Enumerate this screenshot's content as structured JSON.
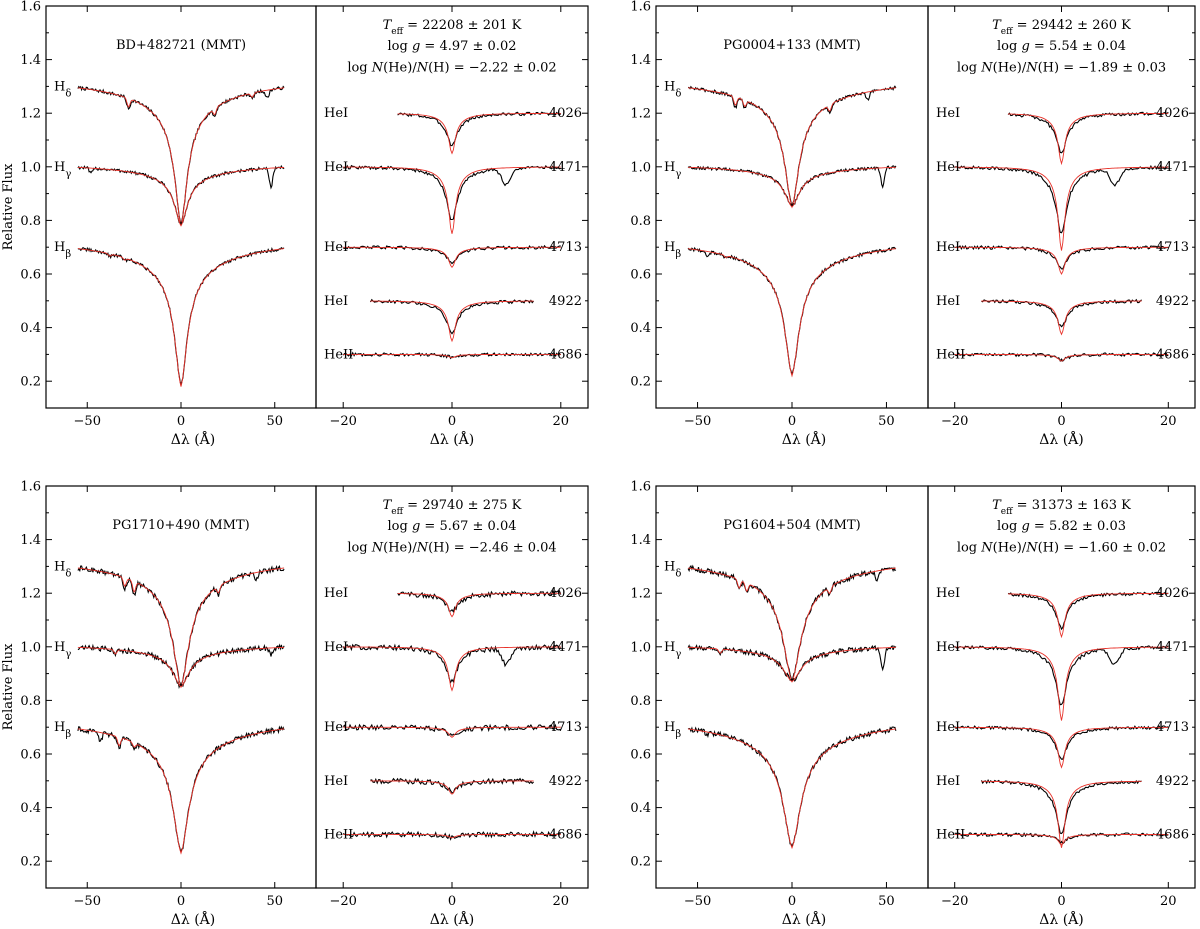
{
  "colors": {
    "observed": "#000000",
    "model": "#e8322a"
  },
  "chart_data": [
    {
      "type": "line",
      "star": "BD+482721 (MMT)",
      "ylabel": "Relative Flux",
      "xlabel": "Δλ (Å)",
      "params": [
        "T_eff = 22208 ± 201 K",
        "log g = 4.97 ± 0.02",
        "log N(He)/N(H) = −2.22 ± 0.02"
      ],
      "left_panel": {
        "xlim": [
          -72,
          72
        ],
        "ylim": [
          0.1,
          1.6
        ],
        "xticks": [
          -50,
          0,
          50
        ],
        "yticks": [
          0.2,
          0.4,
          0.6,
          0.8,
          1.0,
          1.2,
          1.4,
          1.6
        ],
        "ytick_labels": [
          "0.2",
          "0.4",
          "0.6",
          "0.8",
          "1.0",
          "1.2",
          "1.4",
          "1.6"
        ],
        "lines": [
          {
            "label": "H_δ",
            "offset": 1.3,
            "depth": 0.52,
            "width": 4.0,
            "extra": [
              [
                -28,
                0.04
              ],
              [
                18,
                0.03
              ],
              [
                38,
                0.02
              ],
              [
                46,
                0.03
              ]
            ]
          },
          {
            "label": "H_γ",
            "offset": 1.0,
            "depth": 0.22,
            "width": 4.0,
            "extra": [
              [
                -48,
                0.02
              ],
              [
                48,
                0.07
              ]
            ]
          },
          {
            "label": "H_β",
            "offset": 0.7,
            "depth": 0.52,
            "width": 4.0,
            "extra": [
              [
                -38,
                0.01
              ],
              [
                -30,
                0.01
              ]
            ]
          }
        ]
      },
      "right_panel": {
        "xlim": [
          -25,
          25
        ],
        "ylim": [
          0.1,
          1.6
        ],
        "xticks": [
          -20,
          0,
          20
        ],
        "lines": [
          {
            "label": "HeI",
            "wavelength": "4026",
            "offset": 1.2,
            "depth": 0.12,
            "xrange": [
              -10,
              20
            ]
          },
          {
            "label": "HeI",
            "wavelength": "4471",
            "offset": 1.0,
            "depth": 0.2,
            "xrange": [
              -20,
              20
            ]
          },
          {
            "label": "HeI",
            "wavelength": "4713",
            "offset": 0.7,
            "depth": 0.06,
            "xrange": [
              -20,
              20
            ]
          },
          {
            "label": "HeI",
            "wavelength": "4922",
            "offset": 0.5,
            "depth": 0.12,
            "xrange": [
              -15,
              15
            ]
          },
          {
            "label": "HeII",
            "wavelength": "4686",
            "offset": 0.3,
            "depth": 0.01,
            "xrange": [
              -20,
              20
            ]
          }
        ]
      }
    },
    {
      "type": "line",
      "star": "PG0004+133 (MMT)",
      "ylabel": "",
      "xlabel": "Δλ (Å)",
      "params": [
        "T_eff = 29442 ± 260 K",
        "log g = 5.54 ± 0.04",
        "log N(He)/N(H) = −1.89 ± 0.03"
      ],
      "left_panel": {
        "xlim": [
          -72,
          72
        ],
        "ylim": [
          0.1,
          1.6
        ],
        "xticks": [
          -50,
          0,
          50
        ],
        "yticks": [
          0.2,
          0.4,
          0.6,
          0.8,
          1.0,
          1.2,
          1.4,
          1.6
        ],
        "ytick_labels": [
          "0.2",
          "0.4",
          "0.6",
          "0.8",
          "1.0",
          "1.2",
          "1.4",
          "1.6"
        ],
        "lines": [
          {
            "label": "H_δ",
            "offset": 1.3,
            "depth": 0.45,
            "width": 4.5,
            "extra": [
              [
                -30,
                0.04
              ],
              [
                -25,
                0.03
              ],
              [
                20,
                0.03
              ],
              [
                40,
                0.03
              ]
            ]
          },
          {
            "label": "H_γ",
            "offset": 1.0,
            "depth": 0.15,
            "width": 4.5,
            "extra": [
              [
                48,
                0.07
              ]
            ]
          },
          {
            "label": "H_β",
            "offset": 0.7,
            "depth": 0.48,
            "width": 4.5,
            "extra": [
              [
                -45,
                0.02
              ],
              [
                -35,
                0.01
              ]
            ]
          }
        ]
      },
      "right_panel": {
        "xlim": [
          -25,
          25
        ],
        "ylim": [
          0.1,
          1.6
        ],
        "xticks": [
          -20,
          0,
          20
        ],
        "lines": [
          {
            "label": "HeI",
            "wavelength": "4026",
            "offset": 1.2,
            "depth": 0.15,
            "xrange": [
              -10,
              20
            ]
          },
          {
            "label": "HeI",
            "wavelength": "4471",
            "offset": 1.0,
            "depth": 0.25,
            "xrange": [
              -20,
              20
            ]
          },
          {
            "label": "HeI",
            "wavelength": "4713",
            "offset": 0.7,
            "depth": 0.08,
            "xrange": [
              -20,
              20
            ]
          },
          {
            "label": "HeI",
            "wavelength": "4922",
            "offset": 0.5,
            "depth": 0.1,
            "xrange": [
              -15,
              15
            ]
          },
          {
            "label": "HeII",
            "wavelength": "4686",
            "offset": 0.3,
            "depth": 0.02,
            "xrange": [
              -20,
              20
            ]
          }
        ]
      }
    },
    {
      "type": "line",
      "star": "PG1710+490 (MMT)",
      "ylabel": "Relative Flux",
      "xlabel": "Δλ (Å)",
      "params": [
        "T_eff = 29740 ± 275 K",
        "log g = 5.67 ± 0.04",
        "log N(He)/N(H) = −2.46 ± 0.04"
      ],
      "left_panel": {
        "xlim": [
          -72,
          72
        ],
        "ylim": [
          0.1,
          1.6
        ],
        "xticks": [
          -50,
          0,
          50
        ],
        "yticks": [
          0.2,
          0.4,
          0.6,
          0.8,
          1.0,
          1.2,
          1.4,
          1.6
        ],
        "ytick_labels": [
          "0.2",
          "0.4",
          "0.6",
          "0.8",
          "1.0",
          "1.2",
          "1.4",
          "1.6"
        ],
        "lines": [
          {
            "label": "H_δ",
            "offset": 1.3,
            "depth": 0.45,
            "width": 5.0,
            "extra": [
              [
                -30,
                0.04
              ],
              [
                -25,
                0.05
              ],
              [
                20,
                0.03
              ],
              [
                40,
                0.03
              ]
            ]
          },
          {
            "label": "H_γ",
            "offset": 1.0,
            "depth": 0.15,
            "width": 5.0,
            "extra": [
              [
                -35,
                0.02
              ],
              [
                48,
                0.03
              ]
            ]
          },
          {
            "label": "H_β",
            "offset": 0.7,
            "depth": 0.47,
            "width": 5.0,
            "extra": [
              [
                -43,
                0.03
              ],
              [
                -33,
                0.04
              ],
              [
                -25,
                0.02
              ]
            ]
          }
        ]
      },
      "right_panel": {
        "xlim": [
          -25,
          25
        ],
        "ylim": [
          0.1,
          1.6
        ],
        "xticks": [
          -20,
          0,
          20
        ],
        "lines": [
          {
            "label": "HeI",
            "wavelength": "4026",
            "offset": 1.2,
            "depth": 0.07,
            "xrange": [
              -10,
              20
            ]
          },
          {
            "label": "HeI",
            "wavelength": "4471",
            "offset": 1.0,
            "depth": 0.13,
            "xrange": [
              -20,
              20
            ]
          },
          {
            "label": "HeI",
            "wavelength": "4713",
            "offset": 0.7,
            "depth": 0.03,
            "xrange": [
              -20,
              20
            ]
          },
          {
            "label": "HeI",
            "wavelength": "4922",
            "offset": 0.5,
            "depth": 0.04,
            "xrange": [
              -15,
              15
            ]
          },
          {
            "label": "HeII",
            "wavelength": "4686",
            "offset": 0.3,
            "depth": 0.01,
            "xrange": [
              -20,
              20
            ]
          }
        ]
      }
    },
    {
      "type": "line",
      "star": "PG1604+504 (MMT)",
      "ylabel": "",
      "xlabel": "Δλ (Å)",
      "params": [
        "T_eff = 31373 ± 163 K",
        "log g = 5.82 ± 0.03",
        "log N(He)/N(H) = −1.60 ± 0.02"
      ],
      "left_panel": {
        "xlim": [
          -72,
          72
        ],
        "ylim": [
          0.1,
          1.6
        ],
        "xticks": [
          -50,
          0,
          50
        ],
        "yticks": [
          0.2,
          0.4,
          0.6,
          0.8,
          1.0,
          1.2,
          1.4,
          1.6
        ],
        "ytick_labels": [
          "0.2",
          "0.4",
          "0.6",
          "0.8",
          "1.0",
          "1.2",
          "1.4",
          "1.6"
        ],
        "lines": [
          {
            "label": "H_δ",
            "offset": 1.3,
            "depth": 0.43,
            "width": 5.5,
            "extra": [
              [
                -28,
                0.04
              ],
              [
                -24,
                0.04
              ],
              [
                20,
                0.03
              ],
              [
                45,
                0.03
              ]
            ]
          },
          {
            "label": "H_γ",
            "offset": 1.0,
            "depth": 0.13,
            "width": 5.5,
            "extra": [
              [
                -38,
                0.02
              ],
              [
                48,
                0.08
              ]
            ]
          },
          {
            "label": "H_β",
            "offset": 0.7,
            "depth": 0.45,
            "width": 5.5,
            "extra": [
              [
                -45,
                0.01
              ]
            ]
          }
        ]
      },
      "right_panel": {
        "xlim": [
          -25,
          25
        ],
        "ylim": [
          0.1,
          1.6
        ],
        "xticks": [
          -20,
          0,
          20
        ],
        "lines": [
          {
            "label": "HeI",
            "wavelength": "4026",
            "offset": 1.2,
            "depth": 0.13,
            "xrange": [
              -10,
              20
            ]
          },
          {
            "label": "HeI",
            "wavelength": "4471",
            "offset": 1.0,
            "depth": 0.22,
            "xrange": [
              -20,
              20
            ]
          },
          {
            "label": "HeI",
            "wavelength": "4713",
            "offset": 0.7,
            "depth": 0.12,
            "xrange": [
              -20,
              20
            ]
          },
          {
            "label": "HeI",
            "wavelength": "4922",
            "offset": 0.5,
            "depth": 0.2,
            "xrange": [
              -15,
              15
            ]
          },
          {
            "label": "HeII",
            "wavelength": "4686",
            "offset": 0.3,
            "depth": 0.03,
            "xrange": [
              -20,
              20
            ]
          }
        ]
      }
    }
  ]
}
